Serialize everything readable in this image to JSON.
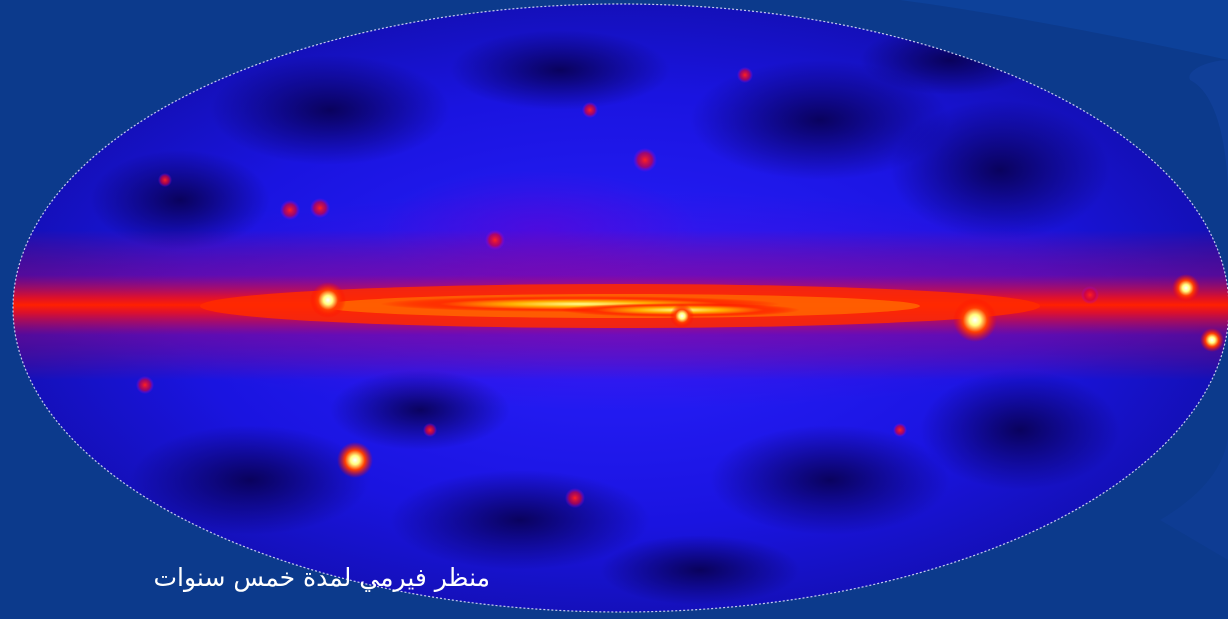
{
  "slide": {
    "background_color": "#0c3a8c",
    "caption": "منظر فيرمي لمدة خمس سنوات"
  },
  "image": {
    "subject": "all-sky gamma-ray map",
    "projection": "ellipse (Aitoff/Hammer-style)",
    "palette": [
      "#08002e",
      "#1a1aff",
      "#ff0000",
      "#ffff80",
      "#ffffff"
    ]
  }
}
